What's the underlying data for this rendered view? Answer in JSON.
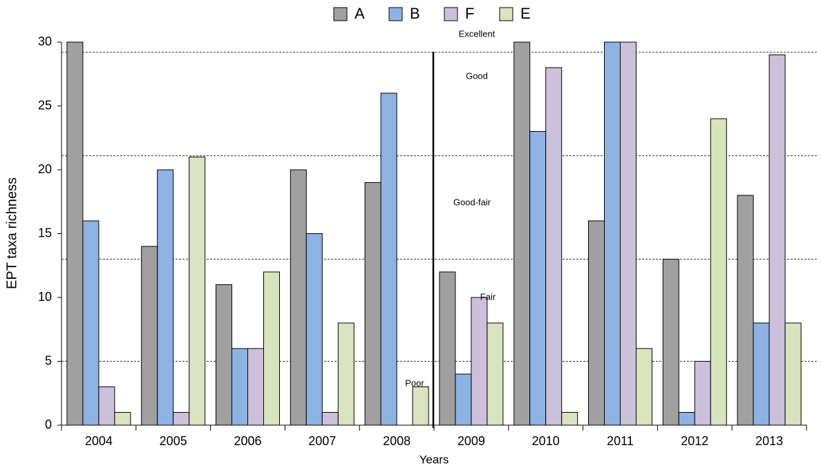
{
  "chart_data": {
    "type": "bar",
    "x_label": "Years",
    "y_label": "EPT taxa richness",
    "categories": [
      "2004",
      "2005",
      "2006",
      "2007",
      "2008",
      "2009",
      "2010",
      "2011",
      "2012",
      "2013"
    ],
    "series": [
      {
        "name": "A",
        "color": "#a0a0a0",
        "values": [
          30,
          14,
          11,
          20,
          19,
          12,
          30,
          16,
          13,
          18
        ]
      },
      {
        "name": "B",
        "color": "#8db3e2",
        "values": [
          16,
          20,
          6,
          15,
          26,
          4,
          23,
          30,
          1,
          8
        ]
      },
      {
        "name": "F",
        "color": "#ccc0da",
        "values": [
          3,
          1,
          6,
          1,
          null,
          10,
          28,
          30,
          5,
          29
        ]
      },
      {
        "name": "E",
        "color": "#d7e4bd",
        "values": [
          1,
          21,
          12,
          8,
          3,
          8,
          1,
          6,
          24,
          8
        ]
      }
    ],
    "ylim": [
      0,
      30
    ],
    "yticks": [
      0,
      5,
      10,
      15,
      20,
      25,
      30
    ],
    "thresholds": [
      29.2,
      21.1,
      13,
      5
    ],
    "annotations": [
      "Excellent",
      "Good",
      "Good-fair",
      "Fair",
      "Poor"
    ]
  }
}
